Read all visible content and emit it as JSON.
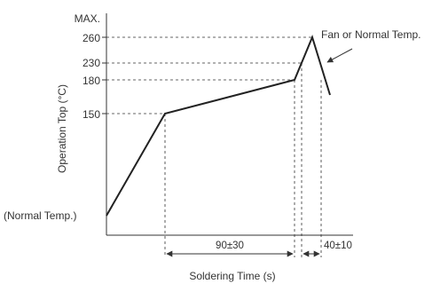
{
  "diagram": {
    "y_labels": {
      "max": "MAX.",
      "v260": "260",
      "v230": "230",
      "v180": "180",
      "v150": "150",
      "normal": "(Normal Temp.)"
    },
    "y_axis_title": "Operation Top (°C)",
    "x_axis_title": "Soldering Time (s)",
    "annotation": "Fan or Normal Temp.",
    "interval_preheat": "90±30",
    "interval_peak": "40±10"
  }
}
